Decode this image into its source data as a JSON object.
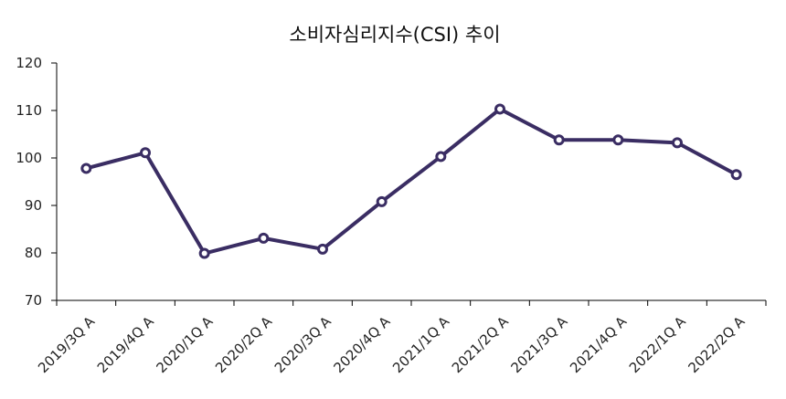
{
  "chart_data": {
    "type": "line",
    "title": "소비자심리지수(CSI) 추이",
    "xlabel": "",
    "ylabel": "",
    "categories": [
      "2019/3Q A",
      "2019/4Q A",
      "2020/1Q A",
      "2020/2Q A",
      "2020/3Q A",
      "2020/4Q A",
      "2021/1Q A",
      "2021/2Q A",
      "2021/3Q A",
      "2021/4Q A",
      "2022/1Q A",
      "2022/2Q A"
    ],
    "series": [
      {
        "values": [
          97.8,
          101.1,
          79.9,
          83.1,
          80.8,
          90.8,
          100.3,
          110.3,
          103.8,
          103.8,
          103.2,
          96.5
        ]
      }
    ],
    "ylim": [
      70,
      120
    ],
    "yticks": [
      70,
      80,
      90,
      100,
      110,
      120
    ],
    "grid": false,
    "legend": "none",
    "colors": {
      "line": "#3a2d63",
      "marker_fill": "#ffffff",
      "axis": "#000000"
    }
  }
}
